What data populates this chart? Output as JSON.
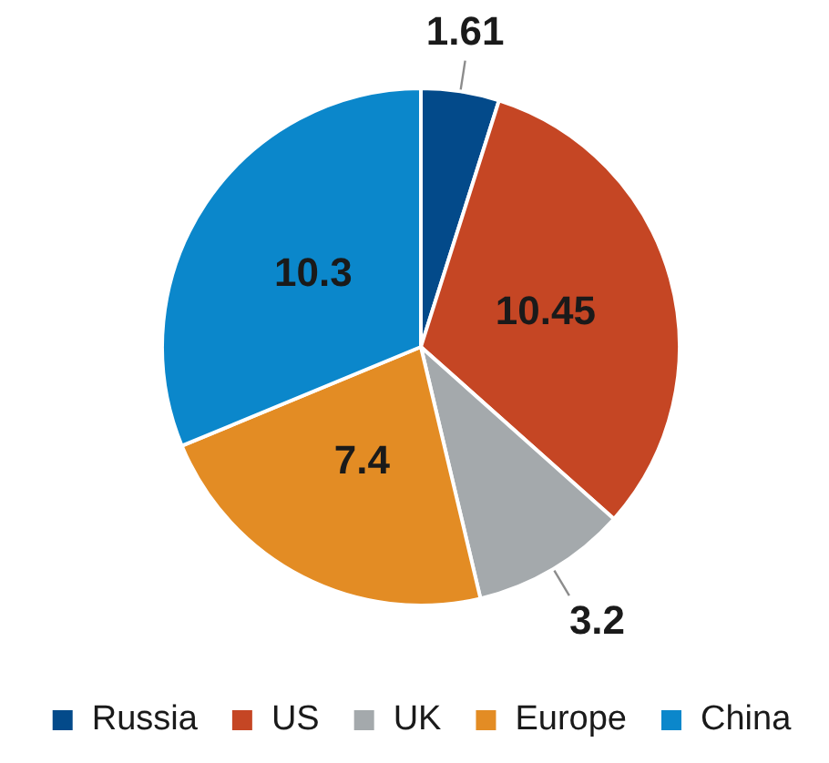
{
  "chart_data": {
    "type": "pie",
    "categories": [
      "Russia",
      "US",
      "UK",
      "Europe",
      "China"
    ],
    "values": [
      1.61,
      10.45,
      3.2,
      7.4,
      10.3
    ],
    "colors": [
      "#034a8a",
      "#c54624",
      "#a4a9ac",
      "#e38c24",
      "#0b87cb"
    ],
    "data_labels": true,
    "legend": "bottom"
  }
}
